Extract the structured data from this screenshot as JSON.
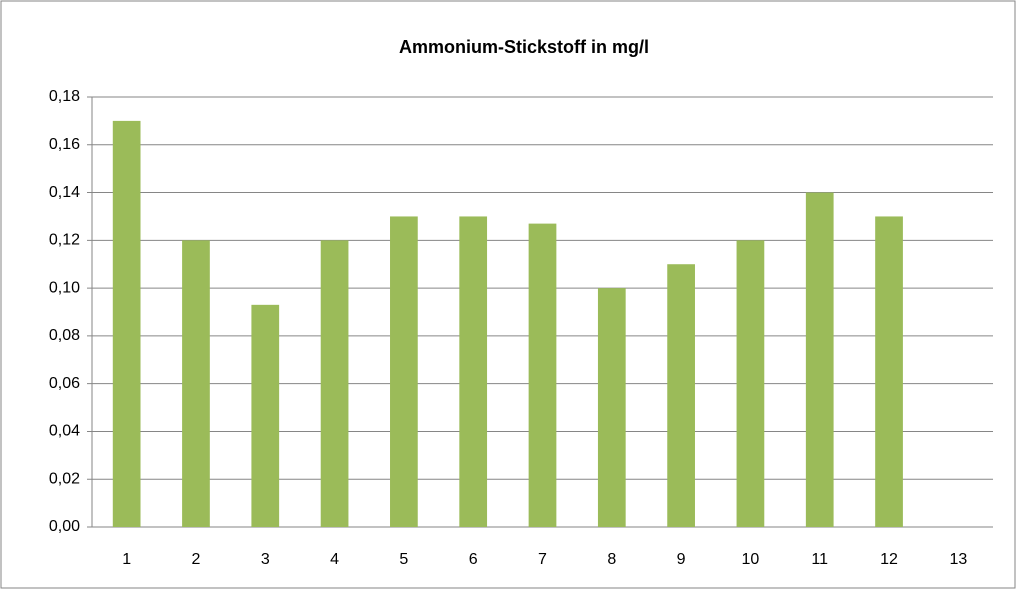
{
  "chart_data": {
    "type": "bar",
    "title": "Ammonium-Stickstoff in mg/l",
    "categories": [
      "1",
      "2",
      "3",
      "4",
      "5",
      "6",
      "7",
      "8",
      "9",
      "10",
      "11",
      "12",
      "13"
    ],
    "values": [
      0.17,
      0.12,
      0.093,
      0.12,
      0.13,
      0.13,
      0.127,
      0.1,
      0.11,
      0.12,
      0.14,
      0.13,
      null
    ],
    "color": "#9bbb59",
    "ylim": [
      0,
      0.18
    ],
    "yticks": [
      {
        "value": 0,
        "label": "0,00"
      },
      {
        "value": 0.02,
        "label": "0,02"
      },
      {
        "value": 0.04,
        "label": "0,04"
      },
      {
        "value": 0.06,
        "label": "0,06"
      },
      {
        "value": 0.08,
        "label": "0,08"
      },
      {
        "value": 0.1,
        "label": "0,10"
      },
      {
        "value": 0.12,
        "label": "0,12"
      },
      {
        "value": 0.14,
        "label": "0,14"
      },
      {
        "value": 0.16,
        "label": "0,16"
      },
      {
        "value": 0.18,
        "label": "0,18"
      }
    ],
    "grid": true
  }
}
